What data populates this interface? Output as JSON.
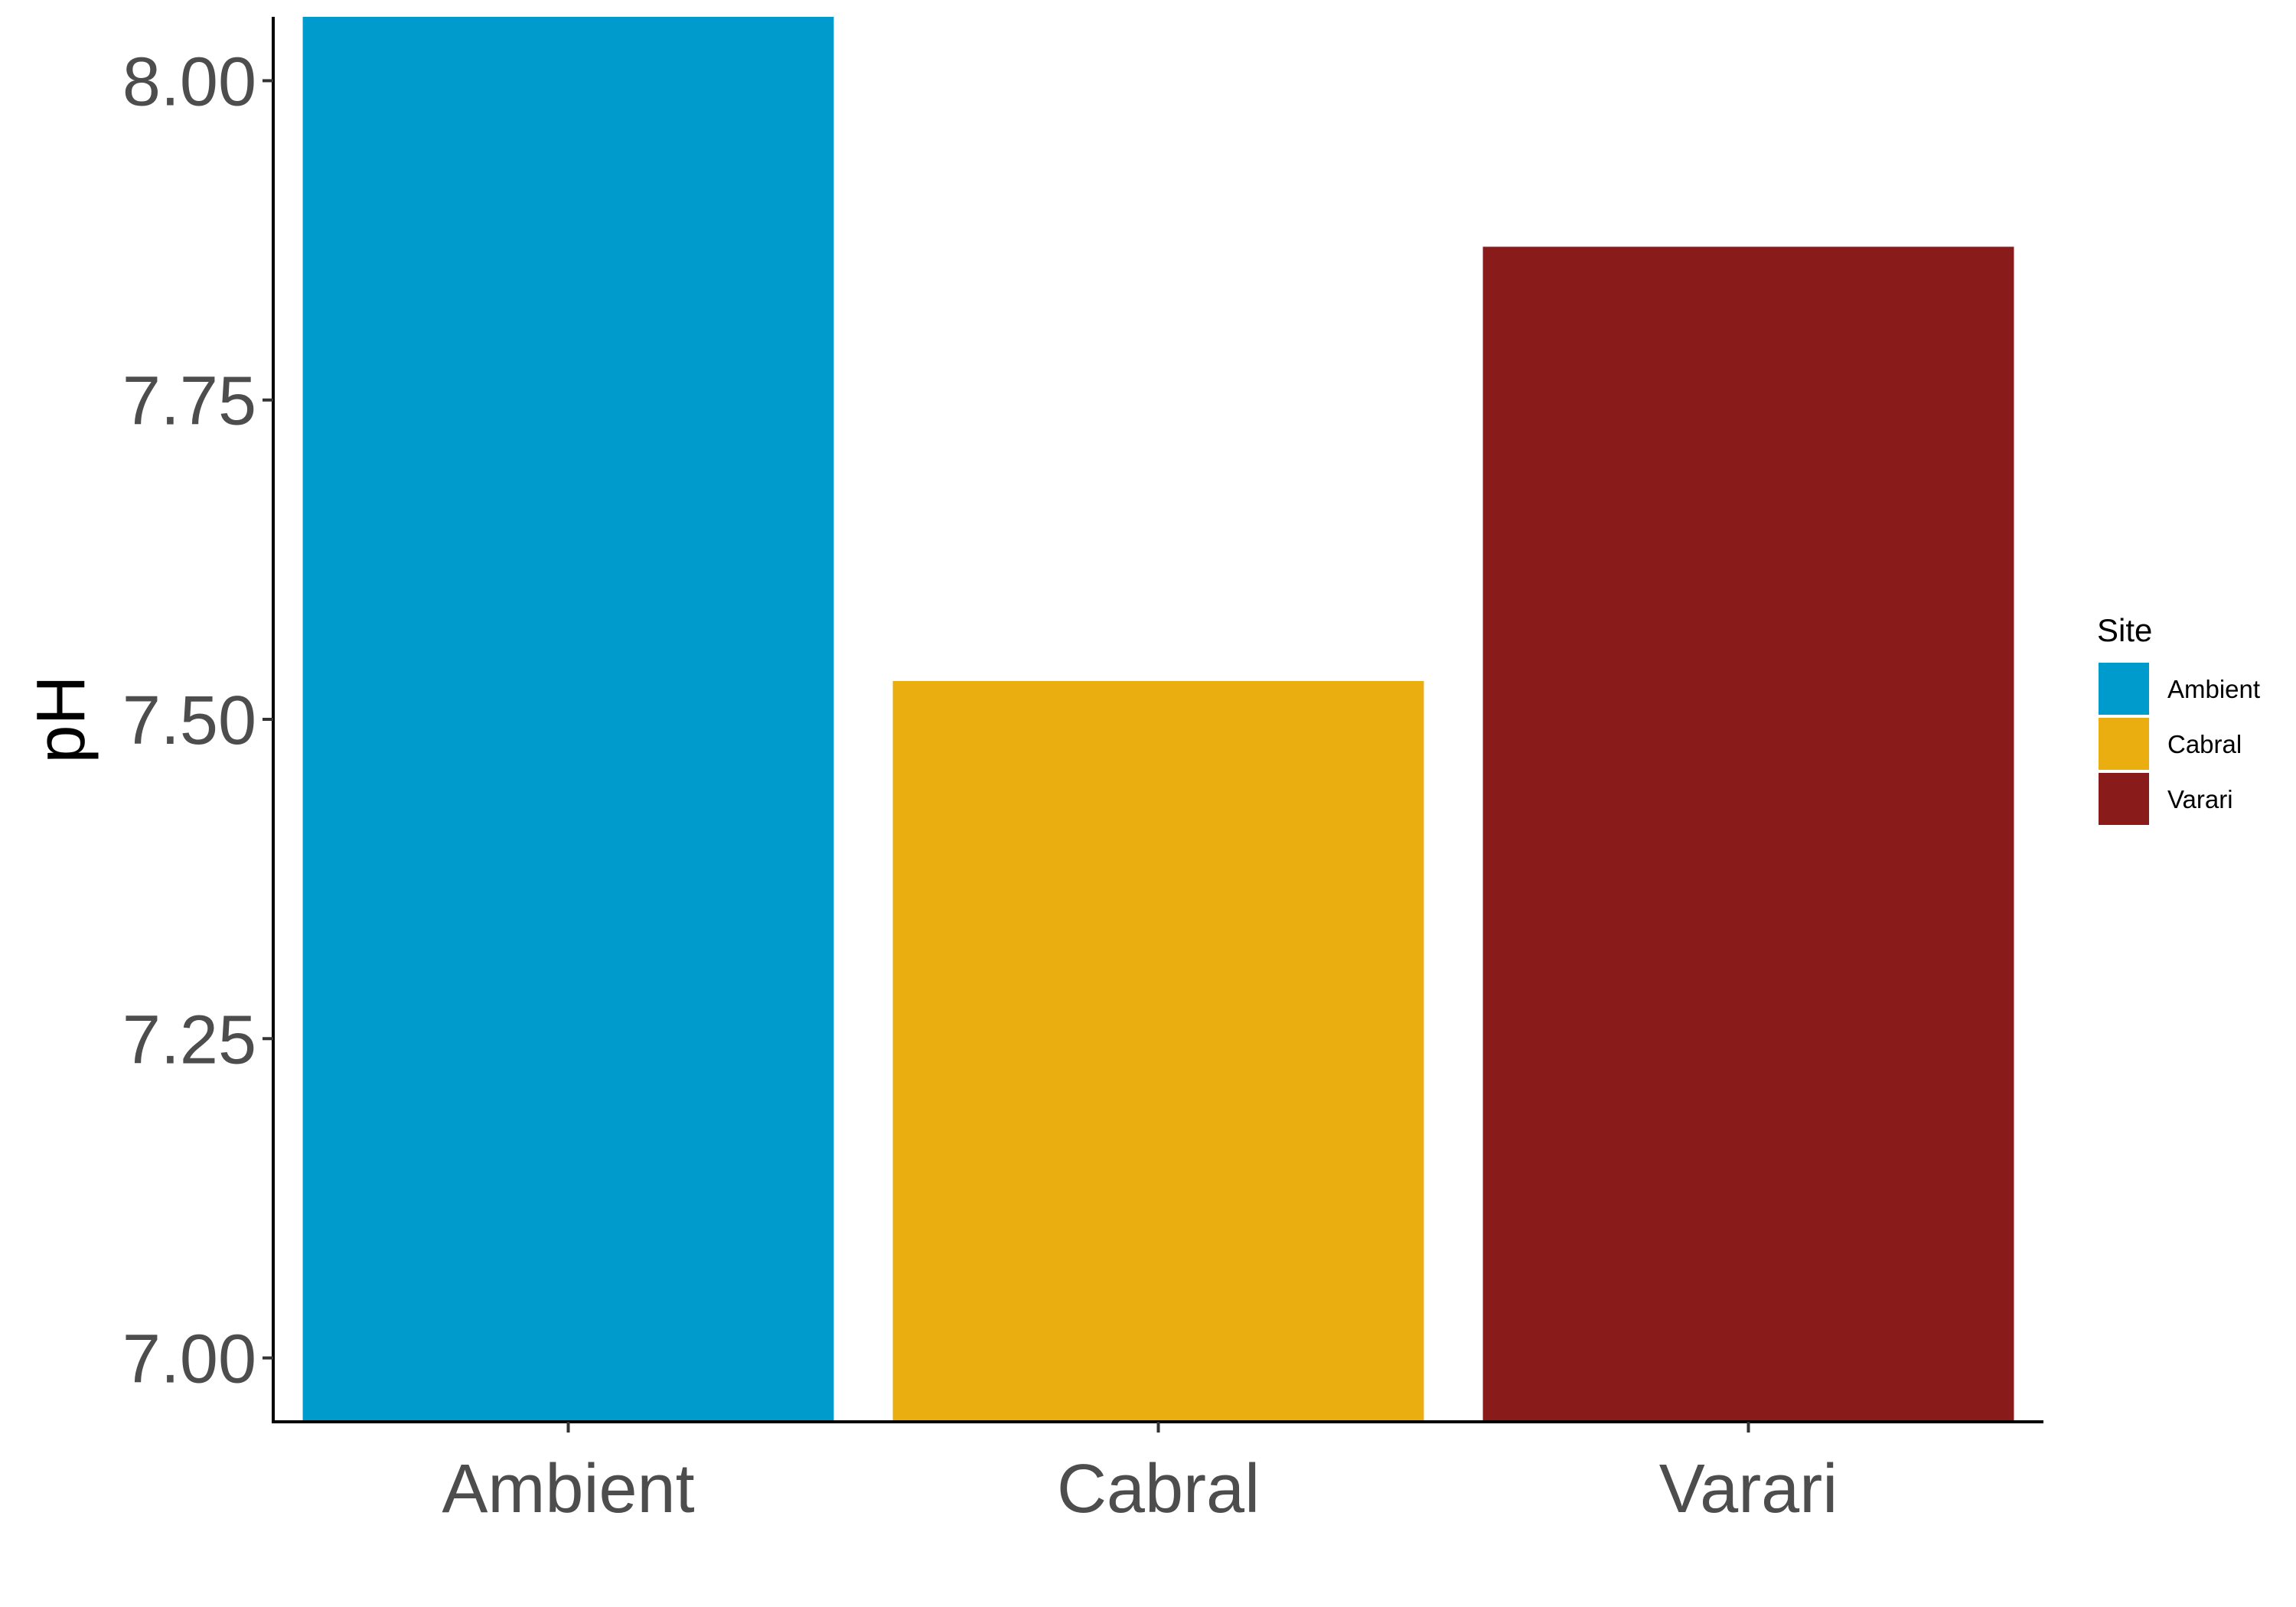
{
  "chart_data": {
    "type": "bar",
    "categories": [
      "Ambient",
      "Cabral",
      "Varari"
    ],
    "values": [
      8.05,
      7.53,
      7.87
    ],
    "colors": [
      "#009bcd",
      "#ebae10",
      "#891b1b"
    ],
    "xlabel": "",
    "ylabel": "pH",
    "ylim": [
      6.95,
      8.05
    ],
    "yticks": [
      7.0,
      7.25,
      7.5,
      7.75,
      8.0
    ],
    "ytick_labels": [
      "7.00",
      "7.25",
      "7.50",
      "7.75",
      "8.00"
    ],
    "grid": false,
    "legend": {
      "title": "Site",
      "position": "right",
      "entries": [
        "Ambient",
        "Cabral",
        "Varari"
      ]
    }
  }
}
